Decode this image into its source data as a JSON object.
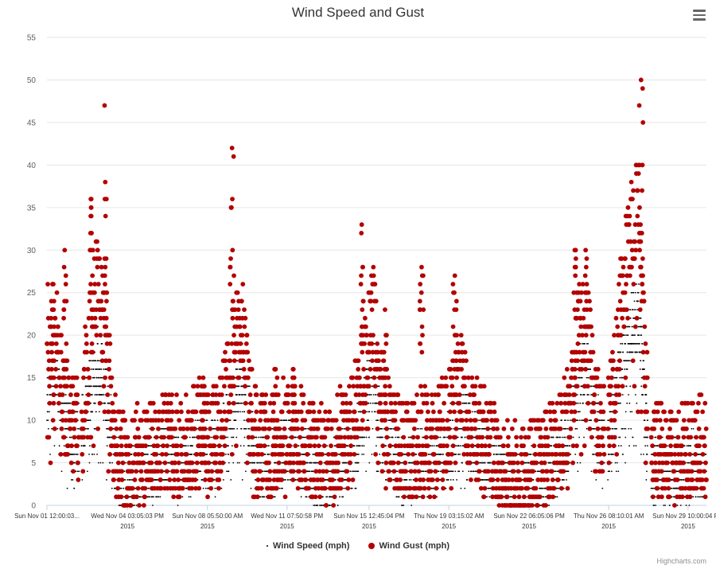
{
  "title": "Wind Speed and Gust",
  "credits": "Highcharts.com",
  "menu_icon": "hamburger-menu-icon",
  "colors": {
    "speed": "#000000",
    "gust": "#b30000",
    "grid": "#e6e6e6",
    "axis": "#c0d0e0"
  },
  "chart_data": {
    "type": "scatter",
    "title": "Wind Speed and Gust",
    "ylim": [
      0,
      55
    ],
    "y_ticks": [
      0,
      5,
      10,
      15,
      20,
      25,
      30,
      35,
      40,
      45,
      50,
      55
    ],
    "x_tick_labels": [
      [
        "Sun Nov 01 12:00:03...",
        ""
      ],
      [
        "Wed Nov 04 03:05:03 PM",
        "2015"
      ],
      [
        "Sun Nov 08 05:50:00 AM",
        "2015"
      ],
      [
        "Wed Nov 11 07:50:58 PM",
        "2015"
      ],
      [
        "Sun Nov 15 12:45:04 PM",
        "2015"
      ],
      [
        "Thu Nov 19 03:15:02 AM",
        "2015"
      ],
      [
        "Sun Nov 22 06:05:06 PM",
        "2015"
      ],
      [
        "Thu Nov 26 08:10:01 AM",
        "2015"
      ],
      [
        "Sun Nov 29 10:00:04 PM",
        "2015"
      ]
    ],
    "x_domain_days": [
      1.0,
      30.75
    ],
    "x_tick_days": [
      1.0,
      4.63,
      8.24,
      11.83,
      15.53,
      19.13,
      22.75,
      26.34,
      29.92
    ],
    "grid": true,
    "legend": "bottom-center",
    "series": [
      {
        "name": "Wind Speed (mph)",
        "marker": "dot",
        "keypoints": [
          [
            1.0,
            14
          ],
          [
            1.4,
            16
          ],
          [
            1.8,
            10
          ],
          [
            2.2,
            7
          ],
          [
            2.6,
            9
          ],
          [
            3.0,
            14
          ],
          [
            3.3,
            17
          ],
          [
            3.7,
            12
          ],
          [
            4.1,
            4
          ],
          [
            4.5,
            2
          ],
          [
            5.0,
            3
          ],
          [
            5.5,
            4
          ],
          [
            6.0,
            5
          ],
          [
            6.5,
            5
          ],
          [
            7.0,
            4
          ],
          [
            7.5,
            6
          ],
          [
            8.0,
            7
          ],
          [
            8.3,
            5
          ],
          [
            8.7,
            6
          ],
          [
            9.0,
            8
          ],
          [
            9.4,
            12
          ],
          [
            9.8,
            15
          ],
          [
            10.1,
            10
          ],
          [
            10.5,
            4
          ],
          [
            11.0,
            4
          ],
          [
            11.5,
            6
          ],
          [
            12.0,
            7
          ],
          [
            12.5,
            5
          ],
          [
            13.0,
            4
          ],
          [
            13.4,
            3
          ],
          [
            13.8,
            3
          ],
          [
            14.2,
            5
          ],
          [
            14.6,
            6
          ],
          [
            15.0,
            8
          ],
          [
            15.4,
            12
          ],
          [
            15.7,
            16
          ],
          [
            16.1,
            10
          ],
          [
            16.5,
            6
          ],
          [
            17.0,
            4
          ],
          [
            17.5,
            4
          ],
          [
            18.0,
            5
          ],
          [
            18.5,
            5
          ],
          [
            19.0,
            6
          ],
          [
            19.3,
            8
          ],
          [
            19.7,
            10
          ],
          [
            20.1,
            8
          ],
          [
            20.5,
            6
          ],
          [
            21.0,
            5
          ],
          [
            21.5,
            3
          ],
          [
            22.0,
            2
          ],
          [
            22.5,
            2
          ],
          [
            23.0,
            3
          ],
          [
            23.5,
            3
          ],
          [
            24.0,
            5
          ],
          [
            24.5,
            7
          ],
          [
            24.9,
            13
          ],
          [
            25.3,
            17
          ],
          [
            25.6,
            11
          ],
          [
            26.0,
            7
          ],
          [
            26.3,
            6
          ],
          [
            26.7,
            13
          ],
          [
            27.0,
            17
          ],
          [
            27.4,
            21
          ],
          [
            27.7,
            22
          ],
          [
            28.0,
            10
          ],
          [
            28.3,
            3
          ],
          [
            28.7,
            4
          ],
          [
            29.1,
            3
          ],
          [
            29.5,
            4
          ],
          [
            30.0,
            4
          ],
          [
            30.4,
            5
          ],
          [
            30.75,
            4
          ]
        ],
        "spread": 4,
        "ymax": 34
      },
      {
        "name": "Wind Gust (mph)",
        "marker": "circle",
        "peaks": [
          [
            1.25,
            26
          ],
          [
            1.8,
            30
          ],
          [
            3.0,
            36
          ],
          [
            3.6,
            47
          ],
          [
            8.05,
            15
          ],
          [
            9.35,
            42
          ],
          [
            11.3,
            16
          ],
          [
            12.1,
            16
          ],
          [
            15.2,
            33
          ],
          [
            16.25,
            23
          ],
          [
            17.9,
            28
          ],
          [
            19.4,
            27
          ],
          [
            24.85,
            30
          ],
          [
            25.3,
            30
          ],
          [
            27.8,
            50
          ]
        ],
        "keypoints": [
          [
            1.0,
            19
          ],
          [
            1.4,
            20
          ],
          [
            1.8,
            11
          ],
          [
            2.2,
            8
          ],
          [
            2.6,
            11
          ],
          [
            3.0,
            22
          ],
          [
            3.3,
            26
          ],
          [
            3.7,
            18
          ],
          [
            4.1,
            6
          ],
          [
            4.5,
            4
          ],
          [
            5.0,
            5
          ],
          [
            5.5,
            6
          ],
          [
            6.0,
            7
          ],
          [
            6.5,
            7
          ],
          [
            7.0,
            6
          ],
          [
            7.5,
            8
          ],
          [
            8.0,
            9
          ],
          [
            8.3,
            7
          ],
          [
            8.7,
            8
          ],
          [
            9.0,
            11
          ],
          [
            9.4,
            18
          ],
          [
            9.8,
            21
          ],
          [
            10.1,
            12
          ],
          [
            10.5,
            6
          ],
          [
            11.0,
            6
          ],
          [
            11.5,
            8
          ],
          [
            12.0,
            9
          ],
          [
            12.5,
            7
          ],
          [
            13.0,
            6
          ],
          [
            13.4,
            5
          ],
          [
            13.8,
            5
          ],
          [
            14.2,
            7
          ],
          [
            14.6,
            8
          ],
          [
            15.0,
            11
          ],
          [
            15.4,
            18
          ],
          [
            15.7,
            22
          ],
          [
            16.1,
            12
          ],
          [
            16.5,
            8
          ],
          [
            17.0,
            6
          ],
          [
            17.5,
            6
          ],
          [
            18.0,
            7
          ],
          [
            18.5,
            7
          ],
          [
            19.0,
            9
          ],
          [
            19.3,
            11
          ],
          [
            19.7,
            14
          ],
          [
            20.1,
            10
          ],
          [
            20.5,
            8
          ],
          [
            21.0,
            7
          ],
          [
            21.5,
            4
          ],
          [
            22.0,
            3
          ],
          [
            22.5,
            3
          ],
          [
            23.0,
            4
          ],
          [
            23.5,
            5
          ],
          [
            24.0,
            7
          ],
          [
            24.5,
            10
          ],
          [
            24.9,
            18
          ],
          [
            25.3,
            22
          ],
          [
            25.6,
            14
          ],
          [
            26.0,
            9
          ],
          [
            26.3,
            8
          ],
          [
            26.7,
            18
          ],
          [
            27.0,
            26
          ],
          [
            27.4,
            32
          ],
          [
            27.7,
            36
          ],
          [
            28.0,
            14
          ],
          [
            28.3,
            5
          ],
          [
            28.7,
            6
          ],
          [
            29.1,
            5
          ],
          [
            29.5,
            6
          ],
          [
            30.0,
            6
          ],
          [
            30.4,
            7
          ],
          [
            30.75,
            6
          ]
        ],
        "spread": 6,
        "ymax": 50
      }
    ]
  },
  "legend_items": [
    {
      "label": "Wind Speed (mph)",
      "marker": "dot"
    },
    {
      "label": "Wind Gust (mph)",
      "marker": "circle"
    }
  ]
}
